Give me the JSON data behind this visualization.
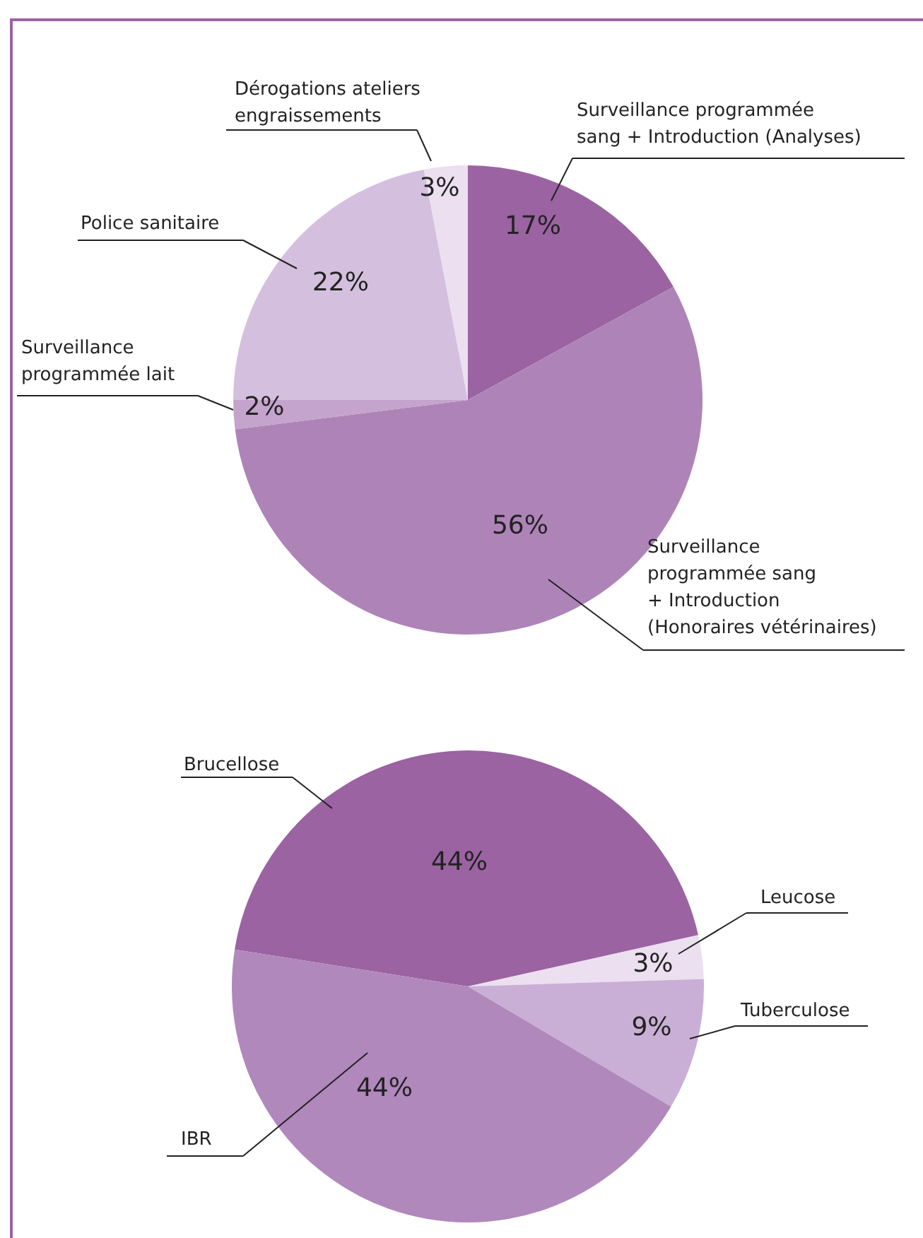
{
  "chart_data": [
    {
      "type": "pie",
      "categories": [
        "Surveillance programmée sang + Introduction (Analyses)",
        "Surveillance programmée sang + Introduction (Honoraires vétérinaires)",
        "Surveillance programmée lait",
        "Police sanitaire",
        "Dérogations ateliers engraissements"
      ],
      "values": [
        17,
        56,
        2,
        22,
        3
      ],
      "value_labels": [
        "17%",
        "56%",
        "2%",
        "22%",
        "3%"
      ],
      "colors": [
        "#9b63a2",
        "#ae84b8",
        "#c4a3cc",
        "#d5bfdf",
        "#ebdff0"
      ]
    },
    {
      "type": "pie",
      "categories": [
        "Brucellose",
        "Leucose",
        "Tuberculose",
        "IBR"
      ],
      "values": [
        44,
        3,
        9,
        44
      ],
      "value_labels": [
        "44%",
        "3%",
        "9%",
        "44%"
      ],
      "colors": [
        "#9b63a2",
        "#ebdff0",
        "#c9afd5",
        "#b088bc"
      ]
    }
  ]
}
